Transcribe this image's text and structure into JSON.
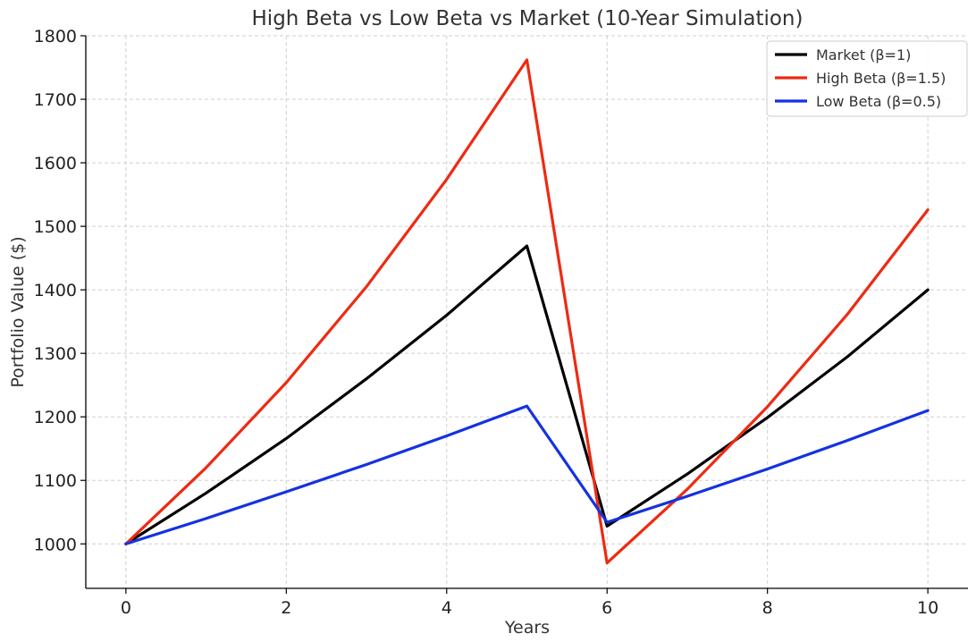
{
  "chart_data": {
    "type": "line",
    "title": "High Beta vs Low Beta vs Market (10-Year Simulation)",
    "xlabel": "Years",
    "ylabel": "Portfolio Value ($)",
    "xlim": [
      -0.5,
      10.5
    ],
    "ylim": [
      930,
      1800
    ],
    "xticks": [
      0,
      2,
      4,
      6,
      8,
      10
    ],
    "yticks": [
      1000,
      1100,
      1200,
      1300,
      1400,
      1500,
      1600,
      1700,
      1800
    ],
    "grid": true,
    "legend_position": "top-right",
    "x": [
      0,
      1,
      2,
      3,
      4,
      5,
      6,
      7,
      8,
      9,
      10
    ],
    "series": [
      {
        "name": "Market (β=1)",
        "color": "#000000",
        "values": [
          1000,
          1080,
          1166,
          1260,
          1360,
          1469,
          1028,
          1110,
          1199,
          1295,
          1400
        ]
      },
      {
        "name": "High Beta (β=1.5)",
        "color": "#ee2a12",
        "values": [
          1000,
          1120,
          1254,
          1405,
          1574,
          1762,
          970,
          1086,
          1216,
          1362,
          1526
        ]
      },
      {
        "name": "Low Beta (β=0.5)",
        "color": "#1432e0",
        "values": [
          1000,
          1040,
          1082,
          1125,
          1170,
          1217,
          1034,
          1075,
          1118,
          1163,
          1210
        ]
      }
    ]
  }
}
